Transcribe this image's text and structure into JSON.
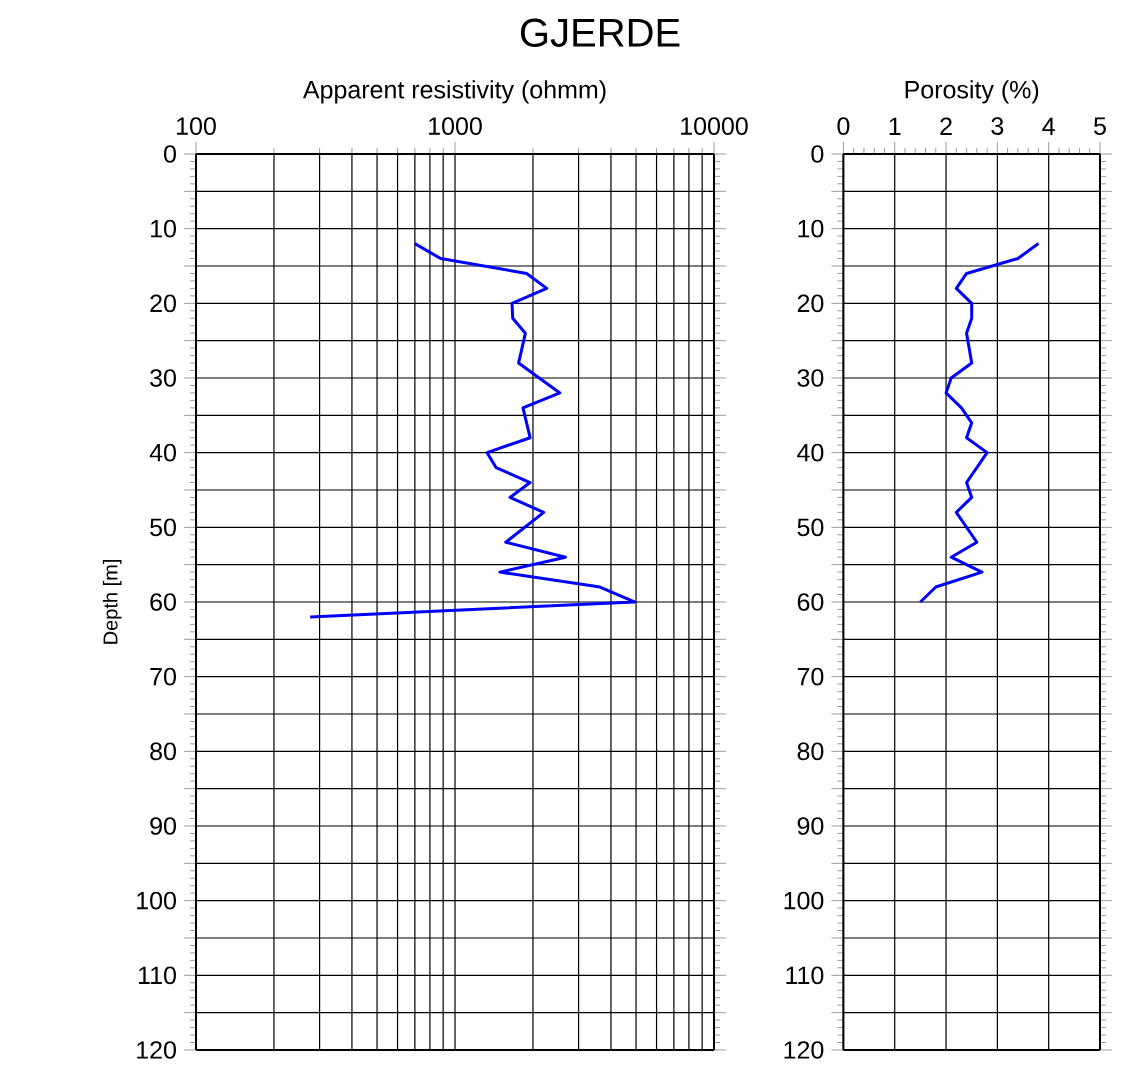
{
  "chart_data": [
    {
      "type": "line",
      "title": "GJERDE",
      "xlabel": "Apparent resistivity (ohmm)",
      "ylabel": "Depth [m]",
      "log": "x",
      "grid": true,
      "marker": "none",
      "line_style": "solid",
      "xlim": [
        100,
        10000
      ],
      "xticks": [
        100,
        1000,
        10000
      ],
      "ylim": [
        120,
        0
      ],
      "yticks": [
        0,
        {
          "value": 5,
          "label": null
        },
        10,
        {
          "value": 15,
          "label": null
        },
        20,
        {
          "value": 25,
          "label": null
        },
        30,
        {
          "value": 35,
          "label": null
        },
        40,
        {
          "value": 45,
          "label": null
        },
        50,
        {
          "value": 55,
          "label": null
        },
        60,
        {
          "value": 65,
          "label": null
        },
        70,
        {
          "value": 75,
          "label": null
        },
        80,
        {
          "value": 85,
          "label": null
        },
        90,
        {
          "value": 95,
          "label": null
        },
        100,
        {
          "value": 105,
          "label": null
        },
        110,
        {
          "value": 115,
          "label": null
        },
        120
      ],
      "series": [
        {
          "color": "#0000ff",
          "x": [
            700,
            880,
            1890,
            2260,
            1660,
            1670,
            1870,
            1760,
            2540,
            1830,
            1950,
            1330,
            1440,
            1950,
            1630,
            2200,
            1570,
            2670,
            1490,
            3630,
            4930,
            276
          ],
          "values": [
            12,
            14,
            16,
            18,
            20,
            22,
            24,
            28,
            32,
            34,
            38,
            40,
            42,
            44,
            46,
            48,
            52,
            54,
            56,
            58,
            60,
            62
          ]
        }
      ]
    },
    {
      "type": "line",
      "xlabel": "Porosity (%)",
      "grid": true,
      "marker": "none",
      "line_style": "solid",
      "xlim": [
        0,
        5
      ],
      "xticks": [
        0,
        1,
        2,
        3,
        4,
        5
      ],
      "ylim": [
        120,
        0
      ],
      "yticks": [
        0,
        {
          "value": 5,
          "label": null
        },
        10,
        {
          "value": 15,
          "label": null
        },
        20,
        {
          "value": 25,
          "label": null
        },
        30,
        {
          "value": 35,
          "label": null
        },
        40,
        {
          "value": 45,
          "label": null
        },
        50,
        {
          "value": 55,
          "label": null
        },
        60,
        {
          "value": 65,
          "label": null
        },
        70,
        {
          "value": 75,
          "label": null
        },
        80,
        {
          "value": 85,
          "label": null
        },
        90,
        {
          "value": 95,
          "label": null
        },
        100,
        {
          "value": 105,
          "label": null
        },
        110,
        {
          "value": 115,
          "label": null
        },
        120
      ],
      "series": [
        {
          "color": "#0000ff",
          "x": [
            3.8,
            3.4,
            2.4,
            2.2,
            2.5,
            2.5,
            2.4,
            2.5,
            2.1,
            2.0,
            2.3,
            2.5,
            2.4,
            2.8,
            2.6,
            2.4,
            2.5,
            2.2,
            2.6,
            2.1,
            2.7,
            1.8,
            1.5
          ],
          "values": [
            12,
            14,
            16,
            18,
            20,
            22,
            24,
            28,
            30,
            32,
            34,
            36,
            38,
            40,
            42,
            44,
            46,
            48,
            52,
            54,
            56,
            58,
            60
          ]
        }
      ]
    }
  ]
}
